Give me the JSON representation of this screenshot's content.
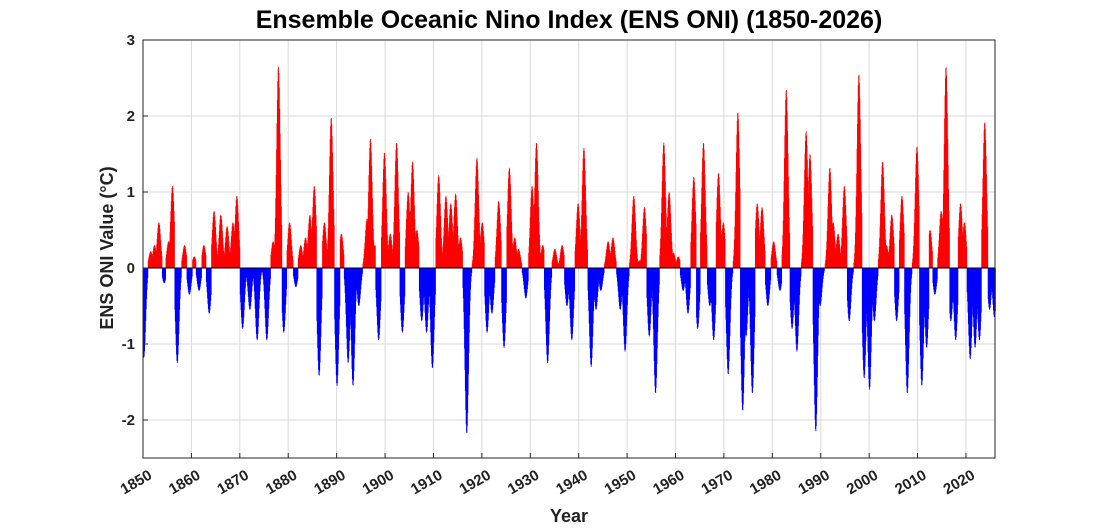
{
  "chart_data": {
    "type": "bar",
    "title": "Ensemble Oceanic Nino Index (ENS ONI) (1850-2026)",
    "xlabel": "Year",
    "ylabel": "ENS ONI Value (°C)",
    "xlim": [
      1850,
      2026
    ],
    "ylim": [
      -2.5,
      3
    ],
    "xticks": [
      1850,
      1860,
      1870,
      1880,
      1890,
      1900,
      1910,
      1920,
      1930,
      1940,
      1950,
      1960,
      1970,
      1980,
      1990,
      2000,
      2010,
      2020
    ],
    "yticks": [
      -2,
      -1,
      0,
      1,
      2,
      3
    ],
    "grid": true,
    "positive_color": "#ff0000",
    "negative_color": "#0000ff",
    "events": [
      [
        1850.1,
        -1.18
      ],
      [
        1851.5,
        0.22
      ],
      [
        1852.3,
        0.3
      ],
      [
        1853.2,
        0.6
      ],
      [
        1854.3,
        -0.2
      ],
      [
        1855.2,
        0.35
      ],
      [
        1856.0,
        1.08
      ],
      [
        1857.0,
        -1.25
      ],
      [
        1858.5,
        0.3
      ],
      [
        1859.5,
        -0.35
      ],
      [
        1860.5,
        0.15
      ],
      [
        1861.5,
        -0.3
      ],
      [
        1862.5,
        0.3
      ],
      [
        1863.6,
        -0.6
      ],
      [
        1864.6,
        0.75
      ],
      [
        1866.0,
        0.7
      ],
      [
        1867.3,
        0.55
      ],
      [
        1868.5,
        0.6
      ],
      [
        1869.3,
        0.95
      ],
      [
        1870.5,
        -0.8
      ],
      [
        1872.0,
        -0.55
      ],
      [
        1873.5,
        -0.95
      ],
      [
        1875.5,
        -0.95
      ],
      [
        1876.8,
        0.35
      ],
      [
        1877.9,
        2.65
      ],
      [
        1879.0,
        -0.85
      ],
      [
        1880.2,
        0.6
      ],
      [
        1881.5,
        -0.25
      ],
      [
        1882.5,
        0.3
      ],
      [
        1883.5,
        0.4
      ],
      [
        1884.4,
        0.7
      ],
      [
        1885.3,
        1.08
      ],
      [
        1886.3,
        -1.42
      ],
      [
        1887.4,
        0.6
      ],
      [
        1888.8,
        1.98
      ],
      [
        1890.0,
        -1.55
      ],
      [
        1890.9,
        0.45
      ],
      [
        1892.3,
        -1.25
      ],
      [
        1893.3,
        -1.55
      ],
      [
        1894.5,
        -0.5
      ],
      [
        1896.2,
        0.65
      ],
      [
        1896.9,
        1.7
      ],
      [
        1897.8,
        0.3
      ],
      [
        1898.6,
        -0.95
      ],
      [
        1899.8,
        1.52
      ],
      [
        1901.0,
        0.45
      ],
      [
        1902.3,
        1.65
      ],
      [
        1903.5,
        -0.85
      ],
      [
        1904.7,
        1.0
      ],
      [
        1905.6,
        1.4
      ],
      [
        1906.5,
        0.5
      ],
      [
        1907.5,
        -0.7
      ],
      [
        1908.5,
        -0.85
      ],
      [
        1909.7,
        -1.32
      ],
      [
        1911.0,
        1.22
      ],
      [
        1912.5,
        0.95
      ],
      [
        1913.5,
        0.85
      ],
      [
        1914.5,
        0.98
      ],
      [
        1915.5,
        0.4
      ],
      [
        1916.8,
        -2.18
      ],
      [
        1918.9,
        1.45
      ],
      [
        1920.0,
        0.6
      ],
      [
        1921.0,
        -0.85
      ],
      [
        1922.0,
        -0.6
      ],
      [
        1923.4,
        0.88
      ],
      [
        1924.5,
        -1.05
      ],
      [
        1925.6,
        1.32
      ],
      [
        1926.7,
        0.4
      ],
      [
        1927.5,
        0.25
      ],
      [
        1929.0,
        -0.4
      ],
      [
        1930.3,
        1.08
      ],
      [
        1931.2,
        1.65
      ],
      [
        1932.5,
        0.3
      ],
      [
        1933.5,
        -1.25
      ],
      [
        1935.0,
        0.25
      ],
      [
        1936.5,
        0.3
      ],
      [
        1937.5,
        -0.5
      ],
      [
        1938.5,
        -0.95
      ],
      [
        1939.8,
        0.85
      ],
      [
        1941.0,
        1.58
      ],
      [
        1942.5,
        -1.3
      ],
      [
        1943.5,
        -0.55
      ],
      [
        1944.5,
        -0.3
      ],
      [
        1946.0,
        0.35
      ],
      [
        1947.0,
        0.4
      ],
      [
        1948.5,
        -0.55
      ],
      [
        1949.5,
        -1.1
      ],
      [
        1951.3,
        0.95
      ],
      [
        1952.5,
        0.1
      ],
      [
        1953.5,
        0.8
      ],
      [
        1954.5,
        -0.9
      ],
      [
        1955.8,
        -1.65
      ],
      [
        1957.5,
        1.65
      ],
      [
        1958.6,
        1.0
      ],
      [
        1959.5,
        0.2
      ],
      [
        1960.5,
        0.15
      ],
      [
        1961.5,
        -0.3
      ],
      [
        1962.5,
        -0.6
      ],
      [
        1963.7,
        1.2
      ],
      [
        1964.5,
        -0.8
      ],
      [
        1965.7,
        1.65
      ],
      [
        1967.0,
        -0.5
      ],
      [
        1967.8,
        -0.95
      ],
      [
        1968.8,
        1.25
      ],
      [
        1969.8,
        0.6
      ],
      [
        1970.8,
        -1.4
      ],
      [
        1972.8,
        2.05
      ],
      [
        1973.8,
        -1.88
      ],
      [
        1974.5,
        -0.9
      ],
      [
        1975.8,
        -1.65
      ],
      [
        1976.8,
        0.85
      ],
      [
        1977.8,
        0.8
      ],
      [
        1979.0,
        -0.5
      ],
      [
        1980.2,
        0.35
      ],
      [
        1981.5,
        -0.3
      ],
      [
        1982.8,
        2.35
      ],
      [
        1984.0,
        -0.8
      ],
      [
        1985.0,
        -1.1
      ],
      [
        1986.9,
        1.8
      ],
      [
        1987.7,
        1.5
      ],
      [
        1988.9,
        -2.15
      ],
      [
        1989.8,
        -0.5
      ],
      [
        1991.8,
        1.32
      ],
      [
        1992.5,
        0.6
      ],
      [
        1993.5,
        0.45
      ],
      [
        1994.8,
        1.08
      ],
      [
        1995.8,
        -0.7
      ],
      [
        1997.8,
        2.55
      ],
      [
        1998.9,
        -1.45
      ],
      [
        2000.0,
        -1.6
      ],
      [
        2001.0,
        -0.7
      ],
      [
        2002.7,
        1.4
      ],
      [
        2003.5,
        0.3
      ],
      [
        2004.6,
        0.7
      ],
      [
        2005.6,
        -0.7
      ],
      [
        2006.7,
        0.95
      ],
      [
        2007.8,
        -1.65
      ],
      [
        2009.8,
        1.6
      ],
      [
        2010.8,
        -1.55
      ],
      [
        2011.8,
        -1.05
      ],
      [
        2012.5,
        0.5
      ],
      [
        2013.5,
        -0.35
      ],
      [
        2014.8,
        0.75
      ],
      [
        2015.8,
        2.65
      ],
      [
        2016.8,
        -0.7
      ],
      [
        2017.8,
        -0.95
      ],
      [
        2018.8,
        0.85
      ],
      [
        2019.6,
        0.6
      ],
      [
        2020.8,
        -1.2
      ],
      [
        2021.8,
        -1.05
      ],
      [
        2022.7,
        -0.95
      ],
      [
        2023.8,
        1.92
      ],
      [
        2024.8,
        -0.55
      ],
      [
        2025.8,
        -0.65
      ]
    ]
  }
}
